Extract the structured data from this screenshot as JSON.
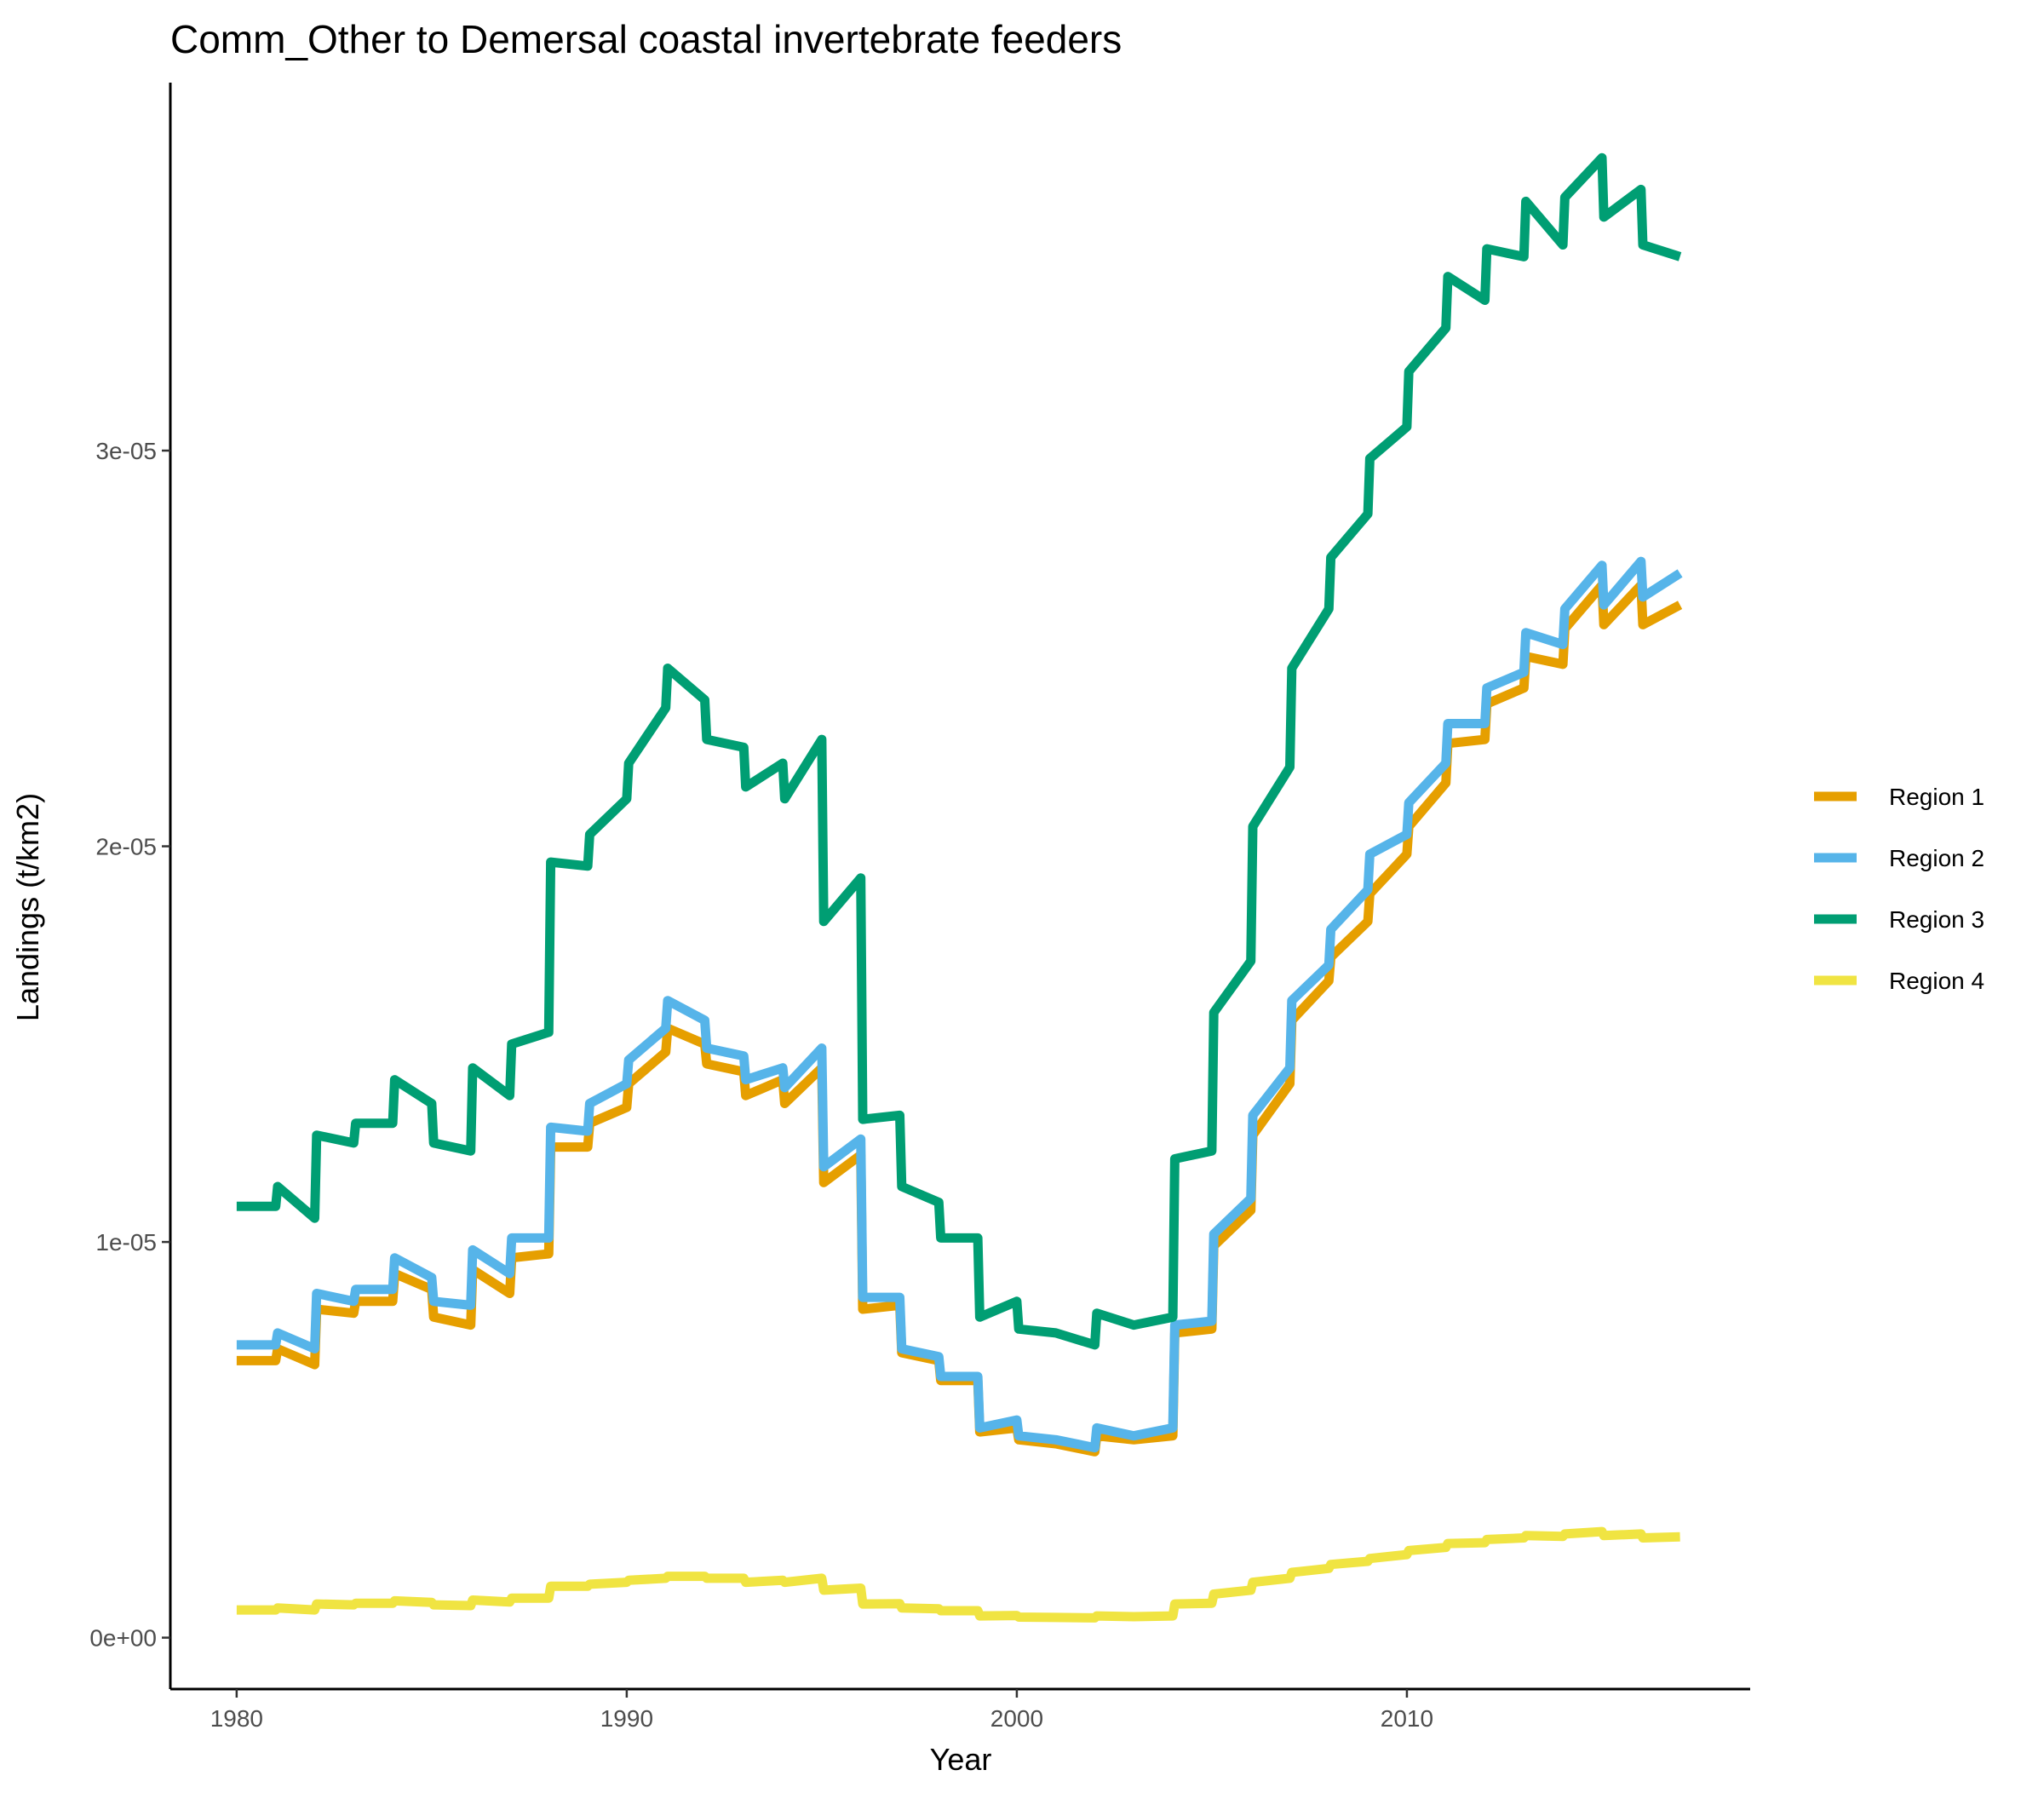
{
  "chart_data": {
    "type": "line",
    "title": "Comm_Other to Demersal coastal invertebrate feeders",
    "xlabel": "Year",
    "ylabel": "Landings (t/km2)",
    "xlim": [
      1978.3,
      2018.8
    ],
    "ylim": [
      -1.3e-06,
      3.93e-05
    ],
    "x_ticks": [
      1980,
      1990,
      2000,
      2010
    ],
    "x_tick_labels": [
      "1980",
      "1990",
      "2000",
      "2010"
    ],
    "y_ticks": [
      0,
      1e-05,
      2e-05,
      3e-05
    ],
    "y_tick_labels": [
      "0e+00",
      "1e-05",
      "2e-05",
      "3e-05"
    ],
    "grid": false,
    "legend_position": "right",
    "series": [
      {
        "name": "Region 1",
        "label": "Region 1",
        "color": "#E69F00",
        "points": [
          [
            1980,
            7e-06
          ],
          [
            1981,
            7e-06
          ],
          [
            1981.05,
            7.3e-06
          ],
          [
            1982,
            6.9e-06
          ],
          [
            1982.05,
            8.3e-06
          ],
          [
            1983,
            8.2e-06
          ],
          [
            1983.05,
            8.5e-06
          ],
          [
            1984,
            8.5e-06
          ],
          [
            1984.05,
            9.2e-06
          ],
          [
            1985,
            8.8e-06
          ],
          [
            1985.05,
            8.1e-06
          ],
          [
            1986,
            7.9e-06
          ],
          [
            1986.05,
            9.3e-06
          ],
          [
            1987,
            8.7e-06
          ],
          [
            1987.05,
            9.6e-06
          ],
          [
            1988,
            9.7e-06
          ],
          [
            1988.05,
            1.24e-05
          ],
          [
            1989,
            1.24e-05
          ],
          [
            1989.05,
            1.3e-05
          ],
          [
            1990,
            1.34e-05
          ],
          [
            1990.05,
            1.4e-05
          ],
          [
            1991,
            1.48e-05
          ],
          [
            1991.05,
            1.54e-05
          ],
          [
            1992,
            1.5e-05
          ],
          [
            1992.05,
            1.45e-05
          ],
          [
            1993,
            1.43e-05
          ],
          [
            1993.05,
            1.37e-05
          ],
          [
            1994,
            1.41e-05
          ],
          [
            1994.05,
            1.35e-05
          ],
          [
            1995,
            1.44e-05
          ],
          [
            1995.05,
            1.15e-05
          ],
          [
            1996,
            1.22e-05
          ],
          [
            1996.05,
            8.3e-06
          ],
          [
            1997,
            8.4e-06
          ],
          [
            1997.05,
            7.2e-06
          ],
          [
            1998,
            7e-06
          ],
          [
            1998.05,
            6.5e-06
          ],
          [
            1999,
            6.5e-06
          ],
          [
            1999.05,
            5.2e-06
          ],
          [
            2000,
            5.3e-06
          ],
          [
            2000.05,
            5e-06
          ],
          [
            2001,
            4.9e-06
          ],
          [
            2002,
            4.7e-06
          ],
          [
            2002.05,
            5.1e-06
          ],
          [
            2003,
            5e-06
          ],
          [
            2004,
            5.1e-06
          ],
          [
            2004.05,
            7.7e-06
          ],
          [
            2005,
            7.8e-06
          ],
          [
            2005.05,
            9.9e-06
          ],
          [
            2006,
            1.08e-05
          ],
          [
            2006.05,
            1.27e-05
          ],
          [
            2007,
            1.4e-05
          ],
          [
            2007.05,
            1.56e-05
          ],
          [
            2008,
            1.66e-05
          ],
          [
            2008.05,
            1.72e-05
          ],
          [
            2009,
            1.81e-05
          ],
          [
            2009.05,
            1.88e-05
          ],
          [
            2010,
            1.98e-05
          ],
          [
            2010.05,
            2.05e-05
          ],
          [
            2011,
            2.16e-05
          ],
          [
            2011.05,
            2.26e-05
          ],
          [
            2012,
            2.27e-05
          ],
          [
            2012.05,
            2.36e-05
          ],
          [
            2013,
            2.4e-05
          ],
          [
            2013.05,
            2.48e-05
          ],
          [
            2014,
            2.46e-05
          ],
          [
            2014.05,
            2.55e-05
          ],
          [
            2015,
            2.66e-05
          ],
          [
            2015.05,
            2.56e-05
          ],
          [
            2016,
            2.66e-05
          ],
          [
            2016.05,
            2.56e-05
          ],
          [
            2017,
            2.61e-05
          ]
        ]
      },
      {
        "name": "Region 2",
        "label": "Region 2",
        "color": "#56B4E9",
        "points": [
          [
            1980,
            7.4e-06
          ],
          [
            1981,
            7.4e-06
          ],
          [
            1981.05,
            7.7e-06
          ],
          [
            1982,
            7.3e-06
          ],
          [
            1982.05,
            8.7e-06
          ],
          [
            1983,
            8.5e-06
          ],
          [
            1983.05,
            8.8e-06
          ],
          [
            1984,
            8.8e-06
          ],
          [
            1984.05,
            9.6e-06
          ],
          [
            1985,
            9.1e-06
          ],
          [
            1985.05,
            8.5e-06
          ],
          [
            1986,
            8.4e-06
          ],
          [
            1986.05,
            9.8e-06
          ],
          [
            1987,
            9.2e-06
          ],
          [
            1987.05,
            1.01e-05
          ],
          [
            1988,
            1.01e-05
          ],
          [
            1988.05,
            1.29e-05
          ],
          [
            1989,
            1.28e-05
          ],
          [
            1989.05,
            1.35e-05
          ],
          [
            1990,
            1.4e-05
          ],
          [
            1990.05,
            1.46e-05
          ],
          [
            1991,
            1.54e-05
          ],
          [
            1991.05,
            1.61e-05
          ],
          [
            1992,
            1.56e-05
          ],
          [
            1992.05,
            1.49e-05
          ],
          [
            1993,
            1.47e-05
          ],
          [
            1993.05,
            1.41e-05
          ],
          [
            1994,
            1.44e-05
          ],
          [
            1994.05,
            1.39e-05
          ],
          [
            1995,
            1.49e-05
          ],
          [
            1995.05,
            1.19e-05
          ],
          [
            1996,
            1.26e-05
          ],
          [
            1996.05,
            8.6e-06
          ],
          [
            1997,
            8.6e-06
          ],
          [
            1997.05,
            7.3e-06
          ],
          [
            1998,
            7.1e-06
          ],
          [
            1998.05,
            6.6e-06
          ],
          [
            1999,
            6.6e-06
          ],
          [
            1999.05,
            5.3e-06
          ],
          [
            2000,
            5.5e-06
          ],
          [
            2000.05,
            5.1e-06
          ],
          [
            2001,
            5e-06
          ],
          [
            2002,
            4.8e-06
          ],
          [
            2002.05,
            5.3e-06
          ],
          [
            2003,
            5.1e-06
          ],
          [
            2004,
            5.3e-06
          ],
          [
            2004.05,
            7.9e-06
          ],
          [
            2005,
            8e-06
          ],
          [
            2005.05,
            1.02e-05
          ],
          [
            2006,
            1.11e-05
          ],
          [
            2006.05,
            1.32e-05
          ],
          [
            2007,
            1.44e-05
          ],
          [
            2007.05,
            1.61e-05
          ],
          [
            2008,
            1.7e-05
          ],
          [
            2008.05,
            1.79e-05
          ],
          [
            2009,
            1.89e-05
          ],
          [
            2009.05,
            1.98e-05
          ],
          [
            2010,
            2.03e-05
          ],
          [
            2010.05,
            2.11e-05
          ],
          [
            2011,
            2.21e-05
          ],
          [
            2011.05,
            2.31e-05
          ],
          [
            2012,
            2.31e-05
          ],
          [
            2012.05,
            2.4e-05
          ],
          [
            2013,
            2.44e-05
          ],
          [
            2013.05,
            2.54e-05
          ],
          [
            2014,
            2.51e-05
          ],
          [
            2014.05,
            2.6e-05
          ],
          [
            2015,
            2.71e-05
          ],
          [
            2015.05,
            2.61e-05
          ],
          [
            2016,
            2.72e-05
          ],
          [
            2016.05,
            2.63e-05
          ],
          [
            2017,
            2.69e-05
          ]
        ]
      },
      {
        "name": "Region 3",
        "label": "Region 3",
        "color": "#009E73",
        "points": [
          [
            1980,
            1.09e-05
          ],
          [
            1981,
            1.09e-05
          ],
          [
            1981.05,
            1.14e-05
          ],
          [
            1982,
            1.06e-05
          ],
          [
            1982.05,
            1.27e-05
          ],
          [
            1983,
            1.25e-05
          ],
          [
            1983.05,
            1.3e-05
          ],
          [
            1984,
            1.3e-05
          ],
          [
            1984.05,
            1.41e-05
          ],
          [
            1985,
            1.35e-05
          ],
          [
            1985.05,
            1.25e-05
          ],
          [
            1986,
            1.23e-05
          ],
          [
            1986.05,
            1.44e-05
          ],
          [
            1987,
            1.37e-05
          ],
          [
            1987.05,
            1.5e-05
          ],
          [
            1988,
            1.53e-05
          ],
          [
            1988.05,
            1.96e-05
          ],
          [
            1989,
            1.95e-05
          ],
          [
            1989.05,
            2.03e-05
          ],
          [
            1990,
            2.12e-05
          ],
          [
            1990.05,
            2.21e-05
          ],
          [
            1991,
            2.35e-05
          ],
          [
            1991.05,
            2.45e-05
          ],
          [
            1992,
            2.37e-05
          ],
          [
            1992.05,
            2.27e-05
          ],
          [
            1993,
            2.25e-05
          ],
          [
            1993.05,
            2.15e-05
          ],
          [
            1994,
            2.21e-05
          ],
          [
            1994.05,
            2.12e-05
          ],
          [
            1995,
            2.27e-05
          ],
          [
            1995.05,
            1.81e-05
          ],
          [
            1996,
            1.92e-05
          ],
          [
            1996.05,
            1.31e-05
          ],
          [
            1997,
            1.32e-05
          ],
          [
            1997.05,
            1.14e-05
          ],
          [
            1998,
            1.1e-05
          ],
          [
            1998.05,
            1.01e-05
          ],
          [
            1999,
            1.01e-05
          ],
          [
            1999.05,
            8.1e-06
          ],
          [
            2000,
            8.5e-06
          ],
          [
            2000.05,
            7.8e-06
          ],
          [
            2001,
            7.7e-06
          ],
          [
            2002,
            7.4e-06
          ],
          [
            2002.05,
            8.2e-06
          ],
          [
            2003,
            7.9e-06
          ],
          [
            2004,
            8.1e-06
          ],
          [
            2004.05,
            1.21e-05
          ],
          [
            2005,
            1.23e-05
          ],
          [
            2005.05,
            1.58e-05
          ],
          [
            2006,
            1.71e-05
          ],
          [
            2006.05,
            2.05e-05
          ],
          [
            2007,
            2.2e-05
          ],
          [
            2007.05,
            2.45e-05
          ],
          [
            2008,
            2.6e-05
          ],
          [
            2008.05,
            2.73e-05
          ],
          [
            2009,
            2.84e-05
          ],
          [
            2009.05,
            2.98e-05
          ],
          [
            2010,
            3.06e-05
          ],
          [
            2010.05,
            3.2e-05
          ],
          [
            2011,
            3.31e-05
          ],
          [
            2011.05,
            3.44e-05
          ],
          [
            2012,
            3.38e-05
          ],
          [
            2012.05,
            3.51e-05
          ],
          [
            2013,
            3.49e-05
          ],
          [
            2013.05,
            3.63e-05
          ],
          [
            2014,
            3.52e-05
          ],
          [
            2014.05,
            3.64e-05
          ],
          [
            2015,
            3.74e-05
          ],
          [
            2015.05,
            3.59e-05
          ],
          [
            2016,
            3.66e-05
          ],
          [
            2016.05,
            3.52e-05
          ],
          [
            2017,
            3.49e-05
          ]
        ]
      },
      {
        "name": "Region 4",
        "label": "Region 4",
        "color": "#F0E442",
        "points": [
          [
            1980,
            7e-07
          ],
          [
            1981,
            7e-07
          ],
          [
            1981.05,
            7.5e-07
          ],
          [
            1982,
            7e-07
          ],
          [
            1982.05,
            8.5e-07
          ],
          [
            1983,
            8.3e-07
          ],
          [
            1983.05,
            8.7e-07
          ],
          [
            1984,
            8.7e-07
          ],
          [
            1984.05,
            9.3e-07
          ],
          [
            1985,
            8.9e-07
          ],
          [
            1985.05,
            8.3e-07
          ],
          [
            1986,
            8.1e-07
          ],
          [
            1986.05,
            9.5e-07
          ],
          [
            1987,
            9e-07
          ],
          [
            1987.05,
            1e-06
          ],
          [
            1988,
            1e-06
          ],
          [
            1988.05,
            1.3e-06
          ],
          [
            1989,
            1.3e-06
          ],
          [
            1989.05,
            1.35e-06
          ],
          [
            1990,
            1.4e-06
          ],
          [
            1990.05,
            1.45e-06
          ],
          [
            1991,
            1.5e-06
          ],
          [
            1991.05,
            1.55e-06
          ],
          [
            1992,
            1.55e-06
          ],
          [
            1992.05,
            1.5e-06
          ],
          [
            1993,
            1.5e-06
          ],
          [
            1993.05,
            1.4e-06
          ],
          [
            1994,
            1.45e-06
          ],
          [
            1994.05,
            1.4e-06
          ],
          [
            1995,
            1.5e-06
          ],
          [
            1995.05,
            1.2e-06
          ],
          [
            1996,
            1.25e-06
          ],
          [
            1996.05,
            8.5e-07
          ],
          [
            1997,
            8.6e-07
          ],
          [
            1997.05,
            7.5e-07
          ],
          [
            1998,
            7.3e-07
          ],
          [
            1998.05,
            6.8e-07
          ],
          [
            1999,
            6.8e-07
          ],
          [
            1999.05,
            5.5e-07
          ],
          [
            2000,
            5.6e-07
          ],
          [
            2000.05,
            5.2e-07
          ],
          [
            2001,
            5.1e-07
          ],
          [
            2002,
            5e-07
          ],
          [
            2002.05,
            5.5e-07
          ],
          [
            2003,
            5.3e-07
          ],
          [
            2004,
            5.5e-07
          ],
          [
            2004.05,
            8.5e-07
          ],
          [
            2005,
            8.7e-07
          ],
          [
            2005.05,
            1.1e-06
          ],
          [
            2006,
            1.2e-06
          ],
          [
            2006.05,
            1.4e-06
          ],
          [
            2007,
            1.5e-06
          ],
          [
            2007.05,
            1.65e-06
          ],
          [
            2008,
            1.75e-06
          ],
          [
            2008.05,
            1.85e-06
          ],
          [
            2009,
            1.93e-06
          ],
          [
            2009.05,
            2e-06
          ],
          [
            2010,
            2.1e-06
          ],
          [
            2010.05,
            2.2e-06
          ],
          [
            2011,
            2.28e-06
          ],
          [
            2011.05,
            2.38e-06
          ],
          [
            2012,
            2.4e-06
          ],
          [
            2012.05,
            2.48e-06
          ],
          [
            2013,
            2.52e-06
          ],
          [
            2013.05,
            2.58e-06
          ],
          [
            2014,
            2.56e-06
          ],
          [
            2014.05,
            2.62e-06
          ],
          [
            2015,
            2.68e-06
          ],
          [
            2015.05,
            2.58e-06
          ],
          [
            2016,
            2.62e-06
          ],
          [
            2016.05,
            2.52e-06
          ],
          [
            2017,
            2.55e-06
          ]
        ]
      }
    ]
  }
}
